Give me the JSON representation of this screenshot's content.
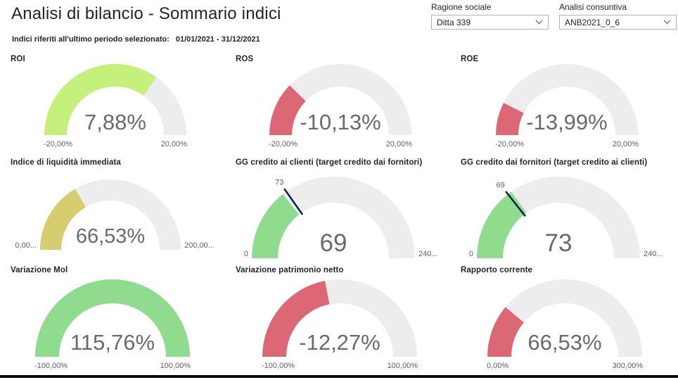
{
  "page": {
    "title": "Analisi di bilancio - Sommario indici",
    "subtitle_label": "Indici riferiti all'ultimo periodo selezionato:",
    "subtitle_value": "01/01/2021 - 31/12/2021"
  },
  "slicers": [
    {
      "label": "Ragione sociale",
      "value": "Ditta 339"
    },
    {
      "label": "Analisi consuntiva",
      "value": "ANB2021_0_6"
    }
  ],
  "colors": {
    "page_background": "#FFFFFF",
    "track": "#EDEDED",
    "target": "#002050",
    "callout_text": "#6A6A6A",
    "tick_text": "#605E5C",
    "title_text": "#252423",
    "slicer_border": "#B3B0AD",
    "good_yellow_green": "#C6F07C",
    "bad_red": "#DC6875",
    "warn_khaki": "#D6CC70",
    "good_green": "#8FDC8F",
    "bottom_bar": "#000000"
  },
  "chart_data": [
    {
      "type": "gauge",
      "title": "ROI",
      "value": 7.88,
      "display": "7,88%",
      "min": -20,
      "max": 20,
      "min_label": "-20,00%",
      "max_label": "20,00%",
      "fill_color": "#C6F07C"
    },
    {
      "type": "gauge",
      "title": "ROS",
      "value": -10.13,
      "display": "-10,13%",
      "min": -20,
      "max": 20,
      "min_label": "-20,00%",
      "max_label": "20,00%",
      "fill_color": "#DC6875"
    },
    {
      "type": "gauge",
      "title": "ROE",
      "value": -13.99,
      "display": "-13,99%",
      "min": -20,
      "max": 20,
      "min_label": "-20,00%",
      "max_label": "20,00%",
      "fill_color": "#DC6875"
    },
    {
      "type": "gauge",
      "title": "Indice di liquidità immediata",
      "value": 66.53,
      "display": "66,53%",
      "min": 0,
      "max": 200,
      "min_label": "0,00...",
      "max_label": "200,00...",
      "fill_color": "#D6CC70"
    },
    {
      "type": "gauge",
      "title": "GG credito ai clienti (target credito dai fornitori)",
      "value": 69,
      "display": "69",
      "min": 0,
      "max": 240,
      "min_label": "0",
      "max_label": "240...",
      "fill_color": "#8FDC8F",
      "target": {
        "value": 73,
        "label": "73"
      }
    },
    {
      "type": "gauge",
      "title": "GG credito dai fornitori (target credito ai clienti)",
      "value": 73,
      "display": "73",
      "min": 0,
      "max": 240,
      "min_label": "0",
      "max_label": "240...",
      "fill_color": "#8FDC8F",
      "target": {
        "value": 69,
        "label": "69"
      }
    },
    {
      "type": "gauge",
      "title": "Variazione Mol",
      "value": 115.76,
      "display": "115,76%",
      "min": -100,
      "max": 100,
      "min_label": "-100,00%",
      "max_label": "100,00%",
      "fill_color": "#8FDC8F"
    },
    {
      "type": "gauge",
      "title": "Variazione patrimonio netto",
      "value": -12.27,
      "display": "-12,27%",
      "min": -100,
      "max": 100,
      "min_label": "-100,00%",
      "max_label": "100,00%",
      "fill_color": "#DC6875"
    },
    {
      "type": "gauge",
      "title": "Rapporto corrente",
      "value": 66.53,
      "display": "66,53%",
      "min": 0,
      "max": 300,
      "min_label": "0,00%",
      "max_label": "300,00%",
      "fill_color": "#DC6875"
    }
  ]
}
